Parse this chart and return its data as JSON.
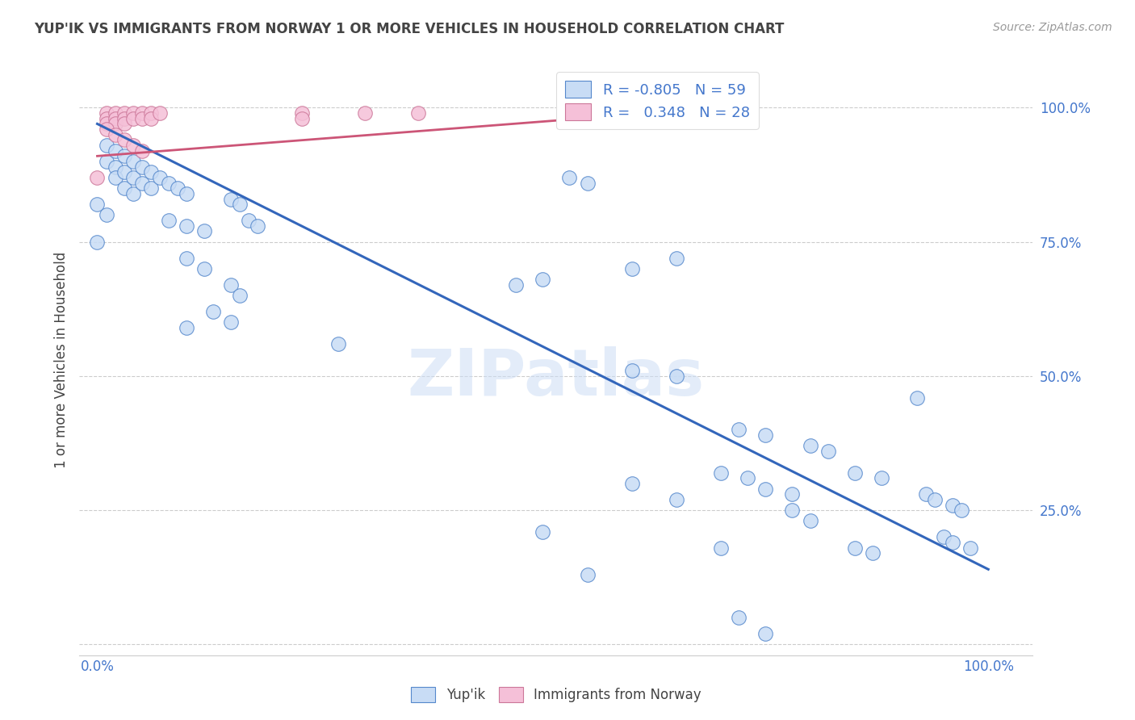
{
  "title": "YUP'IK VS IMMIGRANTS FROM NORWAY 1 OR MORE VEHICLES IN HOUSEHOLD CORRELATION CHART",
  "source": "Source: ZipAtlas.com",
  "ylabel": "1 or more Vehicles in Household",
  "watermark": "ZIPatlas",
  "legend_r_blue": "-0.805",
  "legend_n_blue": "59",
  "legend_r_pink": "0.348",
  "legend_n_pink": "28",
  "blue_fill": "#c8dcf5",
  "pink_fill": "#f5c0d8",
  "blue_edge": "#5588cc",
  "pink_edge": "#cc7799",
  "line_blue": "#3366bb",
  "line_pink": "#cc5577",
  "blue_scatter": [
    [
      0.01,
      0.93
    ],
    [
      0.01,
      0.9
    ],
    [
      0.02,
      0.92
    ],
    [
      0.02,
      0.89
    ],
    [
      0.02,
      0.87
    ],
    [
      0.03,
      0.91
    ],
    [
      0.03,
      0.88
    ],
    [
      0.03,
      0.85
    ],
    [
      0.04,
      0.9
    ],
    [
      0.04,
      0.87
    ],
    [
      0.04,
      0.84
    ],
    [
      0.05,
      0.89
    ],
    [
      0.05,
      0.86
    ],
    [
      0.06,
      0.88
    ],
    [
      0.06,
      0.85
    ],
    [
      0.07,
      0.87
    ],
    [
      0.08,
      0.86
    ],
    [
      0.09,
      0.85
    ],
    [
      0.1,
      0.84
    ],
    [
      0.0,
      0.82
    ],
    [
      0.01,
      0.8
    ],
    [
      0.0,
      0.75
    ],
    [
      0.08,
      0.79
    ],
    [
      0.1,
      0.78
    ],
    [
      0.12,
      0.77
    ],
    [
      0.15,
      0.83
    ],
    [
      0.16,
      0.82
    ],
    [
      0.17,
      0.79
    ],
    [
      0.18,
      0.78
    ],
    [
      0.1,
      0.72
    ],
    [
      0.12,
      0.7
    ],
    [
      0.1,
      0.59
    ],
    [
      0.15,
      0.67
    ],
    [
      0.16,
      0.65
    ],
    [
      0.13,
      0.62
    ],
    [
      0.15,
      0.6
    ],
    [
      0.27,
      0.56
    ],
    [
      0.53,
      0.87
    ],
    [
      0.55,
      0.86
    ],
    [
      0.6,
      0.7
    ],
    [
      0.65,
      0.72
    ],
    [
      0.47,
      0.67
    ],
    [
      0.5,
      0.68
    ],
    [
      0.6,
      0.51
    ],
    [
      0.65,
      0.5
    ],
    [
      0.5,
      0.21
    ],
    [
      0.55,
      0.13
    ],
    [
      0.6,
      0.3
    ],
    [
      0.65,
      0.27
    ],
    [
      0.7,
      0.32
    ],
    [
      0.73,
      0.31
    ],
    [
      0.75,
      0.29
    ],
    [
      0.78,
      0.28
    ],
    [
      0.72,
      0.4
    ],
    [
      0.75,
      0.39
    ],
    [
      0.8,
      0.37
    ],
    [
      0.82,
      0.36
    ],
    [
      0.85,
      0.32
    ],
    [
      0.88,
      0.31
    ],
    [
      0.92,
      0.46
    ],
    [
      0.93,
      0.28
    ],
    [
      0.94,
      0.27
    ],
    [
      0.96,
      0.26
    ],
    [
      0.97,
      0.25
    ],
    [
      0.95,
      0.2
    ],
    [
      0.96,
      0.19
    ],
    [
      0.98,
      0.18
    ],
    [
      0.85,
      0.18
    ],
    [
      0.87,
      0.17
    ],
    [
      0.78,
      0.25
    ],
    [
      0.8,
      0.23
    ],
    [
      0.7,
      0.18
    ],
    [
      0.72,
      0.05
    ],
    [
      0.75,
      0.02
    ]
  ],
  "pink_scatter": [
    [
      0.01,
      0.99
    ],
    [
      0.01,
      0.98
    ],
    [
      0.01,
      0.97
    ],
    [
      0.02,
      0.99
    ],
    [
      0.02,
      0.98
    ],
    [
      0.02,
      0.97
    ],
    [
      0.03,
      0.99
    ],
    [
      0.03,
      0.98
    ],
    [
      0.03,
      0.97
    ],
    [
      0.04,
      0.99
    ],
    [
      0.04,
      0.98
    ],
    [
      0.05,
      0.99
    ],
    [
      0.05,
      0.98
    ],
    [
      0.06,
      0.99
    ],
    [
      0.06,
      0.98
    ],
    [
      0.07,
      0.99
    ],
    [
      0.01,
      0.96
    ],
    [
      0.02,
      0.95
    ],
    [
      0.03,
      0.94
    ],
    [
      0.04,
      0.93
    ],
    [
      0.05,
      0.92
    ],
    [
      0.0,
      0.87
    ],
    [
      0.23,
      0.99
    ],
    [
      0.23,
      0.98
    ],
    [
      0.3,
      0.99
    ],
    [
      0.36,
      0.99
    ],
    [
      0.68,
      0.99
    ]
  ],
  "blue_line_x": [
    0.0,
    1.0
  ],
  "blue_line_y": [
    0.97,
    0.14
  ],
  "pink_line_x": [
    0.0,
    0.7
  ],
  "pink_line_y": [
    0.91,
    1.0
  ],
  "ylim": [
    -0.02,
    1.08
  ],
  "xlim": [
    -0.02,
    1.05
  ],
  "ytick_vals": [
    0.0,
    0.25,
    0.5,
    0.75,
    1.0
  ],
  "ytick_labels": [
    "",
    "25.0%",
    "50.0%",
    "75.0%",
    "100.0%"
  ],
  "xtick_vals": [
    0.0,
    0.25,
    0.5,
    0.75,
    1.0
  ],
  "xtick_labels": [
    "0.0%",
    "",
    "",
    "",
    "100.0%"
  ],
  "grid_color": "#cccccc",
  "text_color_blue": "#4477cc",
  "text_color_dark": "#444444",
  "text_color_source": "#999999"
}
